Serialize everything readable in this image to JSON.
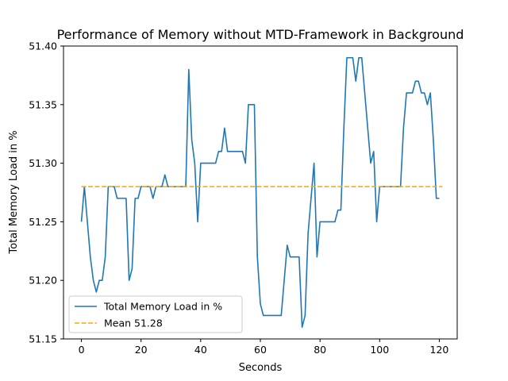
{
  "chart_data": {
    "type": "line",
    "title": "Performance of Memory without MTD-Framework in Background",
    "xlabel": "Seconds",
    "ylabel": "Total Memory Load in %",
    "xlim": [
      -6,
      126
    ],
    "ylim": [
      51.15,
      51.4
    ],
    "xticks": [
      0,
      20,
      40,
      60,
      80,
      100,
      120
    ],
    "yticks": [
      51.15,
      51.2,
      51.25,
      51.3,
      51.35,
      51.4
    ],
    "xtick_labels": [
      "0",
      "20",
      "40",
      "60",
      "80",
      "100",
      "120"
    ],
    "ytick_labels": [
      "51.15",
      "51.20",
      "51.25",
      "51.30",
      "51.35",
      "51.40"
    ],
    "legend_position": "lower-left",
    "series": [
      {
        "name": "Total Memory Load in %",
        "color": "#1f77b4",
        "style": "solid",
        "x": [
          0,
          1,
          2,
          3,
          4,
          5,
          6,
          7,
          8,
          9,
          10,
          11,
          12,
          13,
          14,
          15,
          16,
          17,
          18,
          19,
          20,
          21,
          22,
          23,
          24,
          25,
          26,
          27,
          28,
          29,
          30,
          31,
          32,
          33,
          34,
          35,
          36,
          37,
          38,
          39,
          40,
          41,
          42,
          43,
          44,
          45,
          46,
          47,
          48,
          49,
          50,
          51,
          52,
          53,
          54,
          55,
          56,
          57,
          58,
          59,
          60,
          61,
          62,
          63,
          64,
          65,
          66,
          67,
          68,
          69,
          70,
          71,
          72,
          73,
          74,
          75,
          76,
          77,
          78,
          79,
          80,
          81,
          82,
          83,
          84,
          85,
          86,
          87,
          88,
          89,
          90,
          91,
          92,
          93,
          94,
          95,
          96,
          97,
          98,
          99,
          100,
          101,
          102,
          103,
          104,
          105,
          106,
          107,
          108,
          109,
          110,
          111,
          112,
          113,
          114,
          115,
          116,
          117,
          118,
          119,
          120
        ],
        "values": [
          51.25,
          51.28,
          51.25,
          51.22,
          51.2,
          51.19,
          51.2,
          51.2,
          51.22,
          51.28,
          51.28,
          51.28,
          51.27,
          51.27,
          51.27,
          51.27,
          51.2,
          51.21,
          51.27,
          51.27,
          51.28,
          51.28,
          51.28,
          51.28,
          51.27,
          51.28,
          51.28,
          51.28,
          51.29,
          51.28,
          51.28,
          51.28,
          51.28,
          51.28,
          51.28,
          51.28,
          51.38,
          51.32,
          51.3,
          51.25,
          51.3,
          51.3,
          51.3,
          51.3,
          51.3,
          51.3,
          51.31,
          51.31,
          51.33,
          51.31,
          51.31,
          51.31,
          51.31,
          51.31,
          51.31,
          51.3,
          51.35,
          51.35,
          51.35,
          51.22,
          51.18,
          51.17,
          51.17,
          51.17,
          51.17,
          51.17,
          51.17,
          51.17,
          51.2,
          51.23,
          51.22,
          51.22,
          51.22,
          51.22,
          51.16,
          51.17,
          51.24,
          51.27,
          51.3,
          51.22,
          51.25,
          51.25,
          51.25,
          51.25,
          51.25,
          51.25,
          51.26,
          51.26,
          51.33,
          51.39,
          51.39,
          51.39,
          51.37,
          51.39,
          51.39,
          51.36,
          51.33,
          51.3,
          51.31,
          51.25,
          51.28,
          51.28,
          51.28,
          51.28,
          51.28,
          51.28,
          51.28,
          51.28,
          51.33,
          51.36,
          51.36,
          51.36,
          51.37,
          51.37,
          51.36,
          51.36,
          51.35,
          51.36,
          51.32,
          51.27,
          51.27
        ]
      },
      {
        "name": "Mean 51.28",
        "color": "#ffa500",
        "style": "dashed",
        "x": [
          0,
          121
        ],
        "values": [
          51.28,
          51.28
        ]
      }
    ]
  }
}
